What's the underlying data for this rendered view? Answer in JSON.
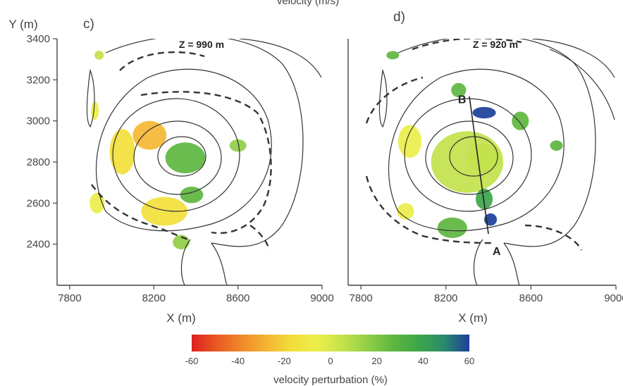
{
  "top_text": "velocity (m/s)",
  "cmap": [
    "#dc2020",
    "#ea5a23",
    "#f08a2a",
    "#f4b733",
    "#f2df3a",
    "#ecee4a",
    "#c2e24c",
    "#8fce47",
    "#5db63f",
    "#3da64a",
    "#2a8a6c",
    "#1c3f9a"
  ],
  "colorbar": {
    "ticks": [
      "-60",
      "-40",
      "-20",
      "0",
      "20",
      "40",
      "60"
    ],
    "label": "velocity perturbation (%)",
    "range": [
      -60,
      60
    ]
  },
  "chart_data": [
    {
      "type": "heatmap",
      "panel_label": "c)",
      "ylabel": "Y (m)",
      "xlabel": "X (m)",
      "annotation": "Z = 990 m",
      "xlim": [
        7740,
        9000
      ],
      "ylim": [
        2200,
        3400
      ],
      "xticks": [
        "7800",
        "8200",
        "8600",
        "9000"
      ],
      "yticks": [
        "3400",
        "3200",
        "3000",
        "2800",
        "2600",
        "2400"
      ],
      "anomalies": [
        {
          "x": 8350,
          "y": 2820,
          "rx": 95,
          "ry": 75,
          "perturbation": 28
        },
        {
          "x": 8380,
          "y": 2640,
          "rx": 55,
          "ry": 40,
          "perturbation": 30
        },
        {
          "x": 8180,
          "y": 2930,
          "rx": 80,
          "ry": 70,
          "perturbation": -25
        },
        {
          "x": 8050,
          "y": 2850,
          "rx": 60,
          "ry": 110,
          "perturbation": -12
        },
        {
          "x": 8250,
          "y": 2560,
          "rx": 110,
          "ry": 70,
          "perturbation": -15
        },
        {
          "x": 8600,
          "y": 2880,
          "rx": 40,
          "ry": 30,
          "perturbation": 20
        },
        {
          "x": 8330,
          "y": 2410,
          "rx": 40,
          "ry": 35,
          "perturbation": 12
        },
        {
          "x": 7930,
          "y": 2600,
          "rx": 35,
          "ry": 50,
          "perturbation": -8
        },
        {
          "x": 7920,
          "y": 3050,
          "rx": 18,
          "ry": 45,
          "perturbation": -5
        },
        {
          "x": 7940,
          "y": 3320,
          "rx": 22,
          "ry": 22,
          "perturbation": 5
        }
      ]
    },
    {
      "type": "heatmap",
      "panel_label": "d)",
      "ylabel": "",
      "xlabel": "X (m)",
      "annotation": "Z = 920 m",
      "xlim": [
        7740,
        9000
      ],
      "ylim": [
        2200,
        3400
      ],
      "xticks": [
        "7800",
        "8200",
        "8600",
        "9000"
      ],
      "yticks": [],
      "section_line": {
        "from": "A",
        "to": "B",
        "a": [
          8400,
          2450
        ],
        "b": [
          8310,
          3120
        ]
      },
      "anomalies": [
        {
          "x": 8300,
          "y": 2800,
          "rx": 170,
          "ry": 150,
          "perturbation": 10
        },
        {
          "x": 8380,
          "y": 2820,
          "rx": 80,
          "ry": 70,
          "perturbation": 5
        },
        {
          "x": 8380,
          "y": 3040,
          "rx": 55,
          "ry": 28,
          "perturbation": 55
        },
        {
          "x": 8410,
          "y": 2520,
          "rx": 30,
          "ry": 30,
          "perturbation": 58
        },
        {
          "x": 8380,
          "y": 2620,
          "rx": 40,
          "ry": 50,
          "perturbation": 35
        },
        {
          "x": 8230,
          "y": 2480,
          "rx": 70,
          "ry": 50,
          "perturbation": 30
        },
        {
          "x": 8550,
          "y": 3000,
          "rx": 40,
          "ry": 45,
          "perturbation": 30
        },
        {
          "x": 8720,
          "y": 2880,
          "rx": 30,
          "ry": 25,
          "perturbation": 25
        },
        {
          "x": 8030,
          "y": 2900,
          "rx": 55,
          "ry": 80,
          "perturbation": -10
        },
        {
          "x": 8010,
          "y": 2560,
          "rx": 40,
          "ry": 40,
          "perturbation": -5
        },
        {
          "x": 8260,
          "y": 3150,
          "rx": 35,
          "ry": 35,
          "perturbation": 30
        },
        {
          "x": 7950,
          "y": 3320,
          "rx": 30,
          "ry": 20,
          "perturbation": 25
        }
      ]
    }
  ]
}
